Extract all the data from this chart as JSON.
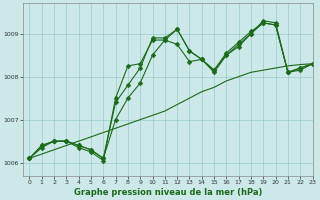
{
  "title": "Graphe pression niveau de la mer (hPa)",
  "background_color": "#cce8e8",
  "grid_color": "#99cccc",
  "line_color": "#1a6b1a",
  "xlim": [
    -0.5,
    23
  ],
  "ylim": [
    1005.7,
    1009.7
  ],
  "yticks": [
    1006,
    1007,
    1008,
    1009
  ],
  "xticks": [
    0,
    1,
    2,
    3,
    4,
    5,
    6,
    7,
    8,
    9,
    10,
    11,
    12,
    13,
    14,
    15,
    16,
    17,
    18,
    19,
    20,
    21,
    22,
    23
  ],
  "series_main": [
    [
      1006.1,
      1006.35,
      1006.5,
      1006.5,
      1006.35,
      1006.25,
      1006.05,
      1007.5,
      1008.25,
      1008.3,
      1008.85,
      1008.85,
      1009.1,
      1008.6,
      1008.4,
      1008.15,
      1008.5,
      1008.7,
      1009.0,
      1009.3,
      1009.25,
      1008.1,
      1008.2,
      1008.3
    ],
    [
      1006.1,
      1006.4,
      1006.5,
      1006.5,
      1006.4,
      1006.3,
      1006.1,
      1007.4,
      1007.8,
      1008.2,
      1008.9,
      1008.9,
      1009.1,
      1008.6,
      1008.4,
      1008.1,
      1008.5,
      1008.75,
      1009.0,
      1009.25,
      1009.2,
      1008.1,
      1008.2,
      1008.3
    ],
    [
      1006.1,
      1006.4,
      1006.5,
      1006.5,
      1006.4,
      1006.3,
      1006.1,
      1007.0,
      1007.5,
      1007.85,
      1008.5,
      1008.85,
      1008.75,
      1008.35,
      1008.4,
      1008.15,
      1008.55,
      1008.8,
      1009.05,
      1009.25,
      1009.2,
      1008.1,
      1008.15,
      1008.3
    ]
  ],
  "series_linear": [
    1006.1,
    1006.2,
    1006.3,
    1006.4,
    1006.5,
    1006.6,
    1006.7,
    1006.8,
    1006.9,
    1007.0,
    1007.1,
    1007.2,
    1007.35,
    1007.5,
    1007.65,
    1007.75,
    1007.9,
    1008.0,
    1008.1,
    1008.15,
    1008.2,
    1008.25,
    1008.28,
    1008.3
  ],
  "marker": "D",
  "markersize": 2.5,
  "linewidth": 0.8,
  "linear_linewidth": 0.8
}
